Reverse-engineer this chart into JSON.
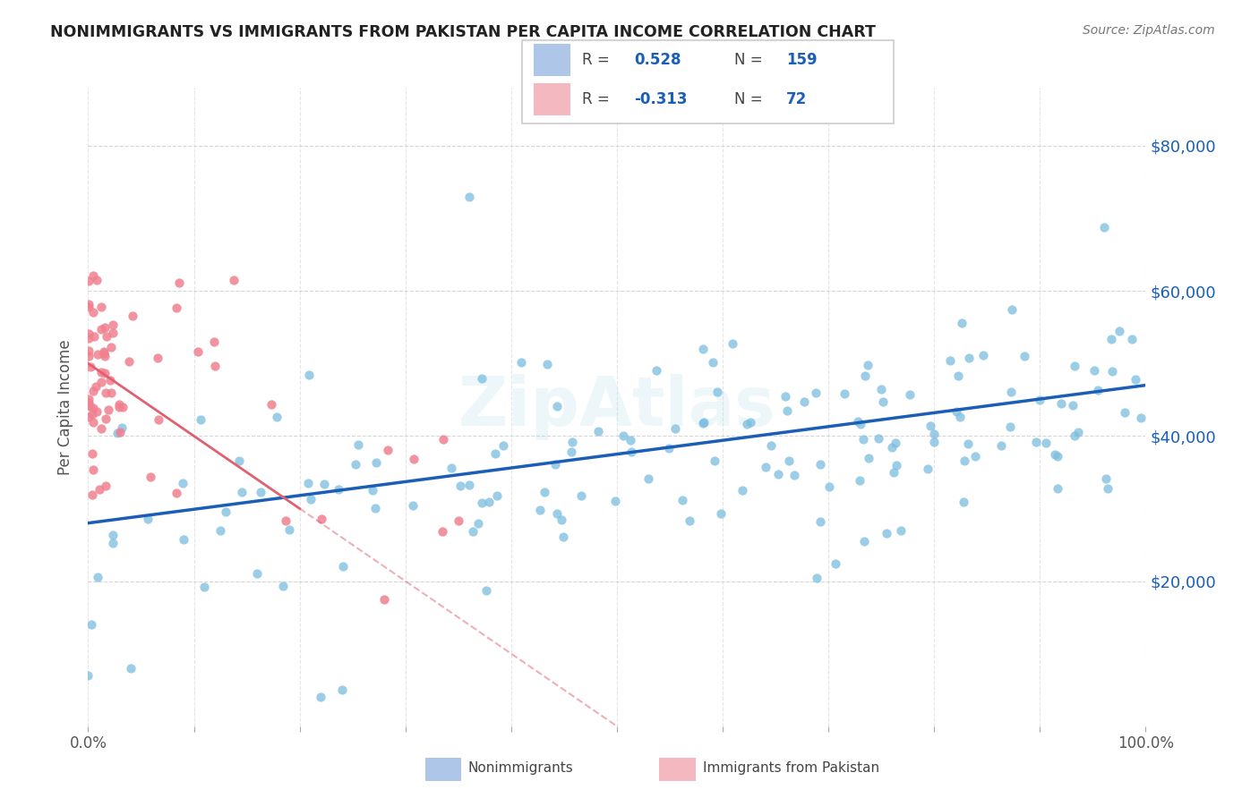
{
  "title": "NONIMMIGRANTS VS IMMIGRANTS FROM PAKISTAN PER CAPITA INCOME CORRELATION CHART",
  "source": "Source: ZipAtlas.com",
  "ylabel": "Per Capita Income",
  "ytick_values": [
    20000,
    40000,
    60000,
    80000
  ],
  "nonimmigrant_color": "#7bbde0",
  "immigrant_color": "#f08090",
  "trend_nonimmigrant_color": "#1a5eb8",
  "trend_immigrant_color": "#e06070",
  "watermark_text": "ZipAtlas",
  "background_color": "#ffffff",
  "grid_color": "#cccccc",
  "xlim": [
    0.0,
    1.0
  ],
  "ylim": [
    0,
    88000
  ],
  "legend_R1": "0.528",
  "legend_N1": "159",
  "legend_R2": "-0.313",
  "legend_N2": "72",
  "legend_color1": "#aec6e8",
  "legend_color2": "#f4b8c1",
  "text_color": "#1a5eb8"
}
